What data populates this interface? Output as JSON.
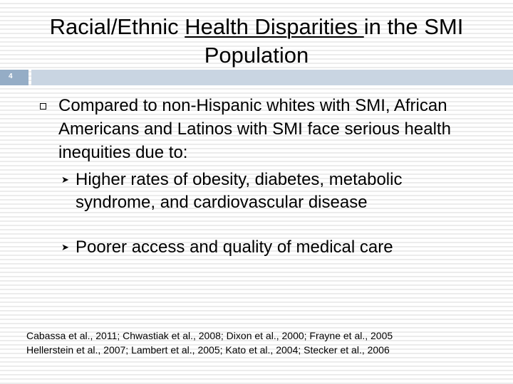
{
  "slide": {
    "title_before": "Racial/Ethnic ",
    "title_underlined": "Health Disparities ",
    "title_after": "in the SMI Population",
    "number": "4"
  },
  "content": {
    "bullet_1": "Compared to non-Hispanic whites with SMI, African Americans and Latinos with SMI face serious health inequities due to:",
    "sub_bullets": [
      " Higher rates of obesity, diabetes, metabolic syndrome, and cardiovascular disease",
      "Poorer access and quality of medical care"
    ]
  },
  "citations": {
    "line_1": "Cabassa et al., 2011; Chwastiak et al., 2008; Dixon et al., 2000; Frayne et al., 2005",
    "line_2": "Hellerstein et al., 2007; Lambert et al., 2005; Kato et al., 2004; Stecker et al., 2006"
  },
  "colors": {
    "number_box": "#95adc6",
    "rule_bar": "#c9d5e2"
  },
  "icons": {
    "level1_bullet": "hollow-square-icon",
    "level2_bullet": "arrowhead-icon"
  }
}
